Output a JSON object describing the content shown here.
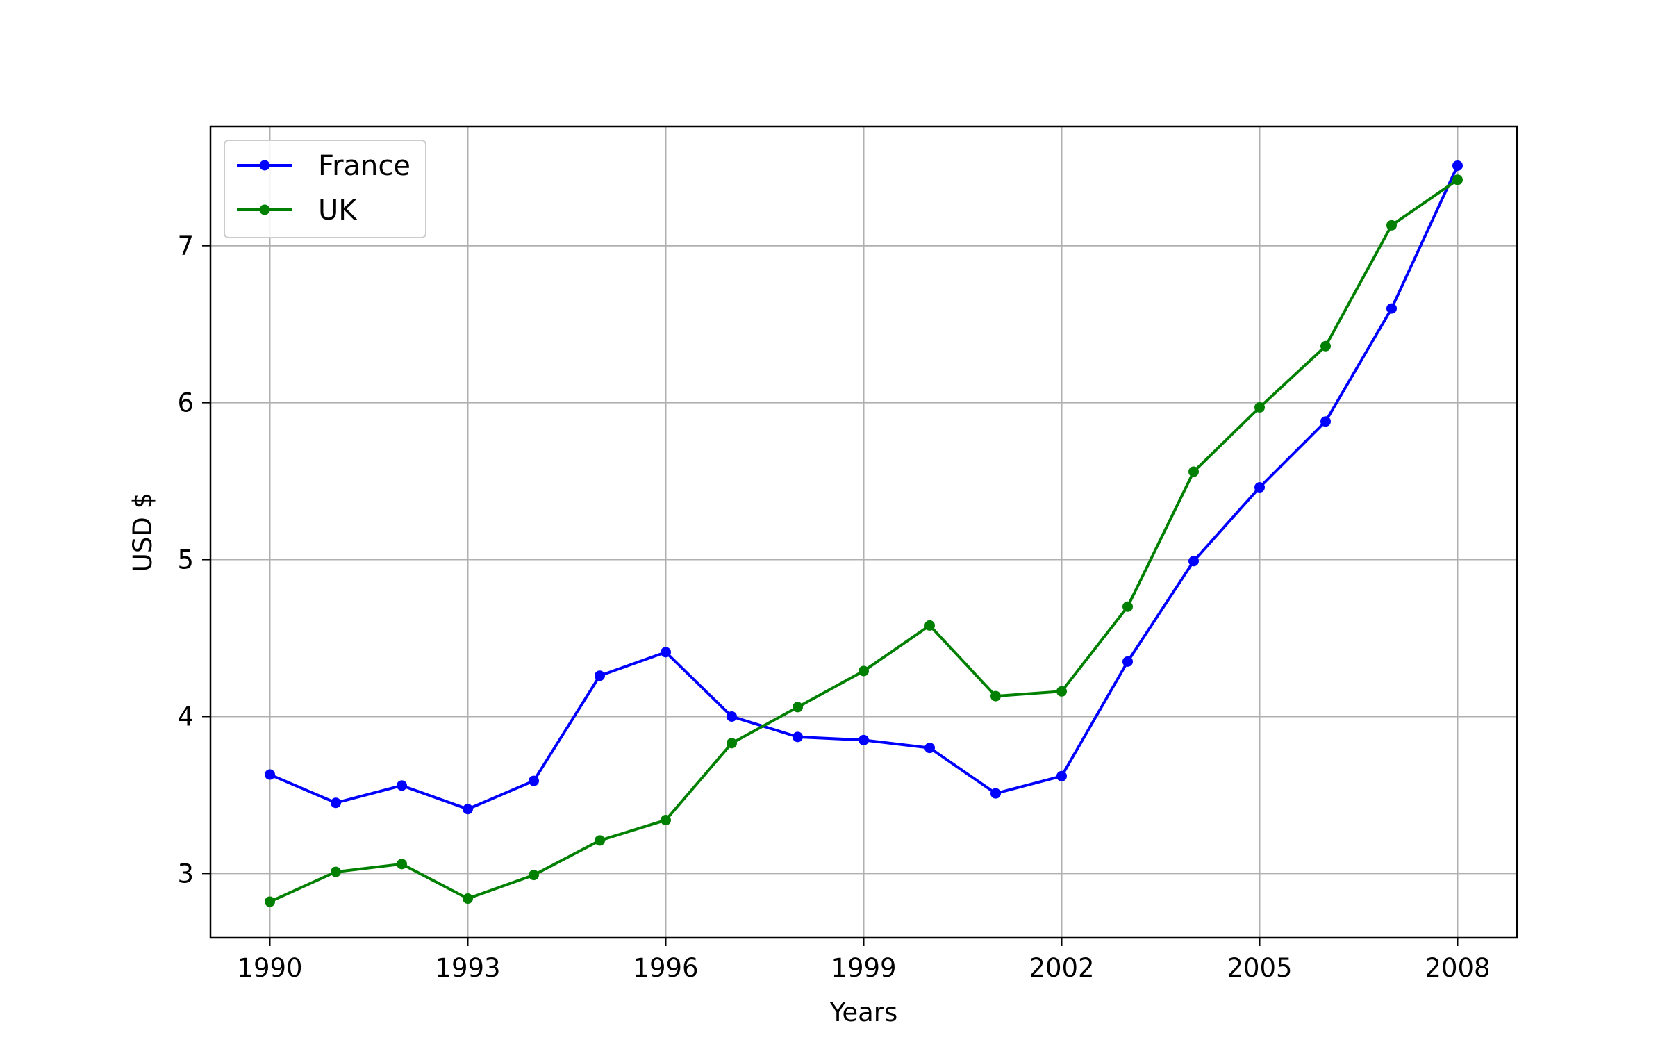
{
  "chart_data": {
    "type": "line",
    "xlabel": "Years",
    "ylabel": "USD $",
    "x": [
      1990,
      1991,
      1992,
      1993,
      1994,
      1995,
      1996,
      1997,
      1998,
      1999,
      2000,
      2001,
      2002,
      2003,
      2004,
      2005,
      2006,
      2007,
      2008
    ],
    "xlim": [
      1989.1,
      2008.9
    ],
    "ylim": [
      2.59,
      7.76
    ],
    "xticks": [
      "1990",
      "1993",
      "1996",
      "1999",
      "2002",
      "2005",
      "2008"
    ],
    "yticks": [
      "3",
      "4",
      "5",
      "6",
      "7"
    ],
    "grid": true,
    "legend_position": "upper-left",
    "series": [
      {
        "name": "France",
        "color": "#0000ff",
        "values": [
          3.63,
          3.45,
          3.56,
          3.41,
          3.59,
          4.26,
          4.41,
          4.0,
          3.87,
          3.85,
          3.8,
          3.51,
          3.62,
          4.35,
          4.99,
          5.46,
          5.88,
          6.6,
          7.51
        ]
      },
      {
        "name": "UK",
        "color": "#008000",
        "values": [
          2.82,
          3.01,
          3.06,
          2.84,
          2.99,
          3.21,
          3.34,
          3.83,
          4.06,
          4.29,
          4.58,
          4.13,
          4.16,
          4.7,
          5.56,
          5.97,
          6.36,
          7.13,
          7.42
        ]
      }
    ]
  }
}
